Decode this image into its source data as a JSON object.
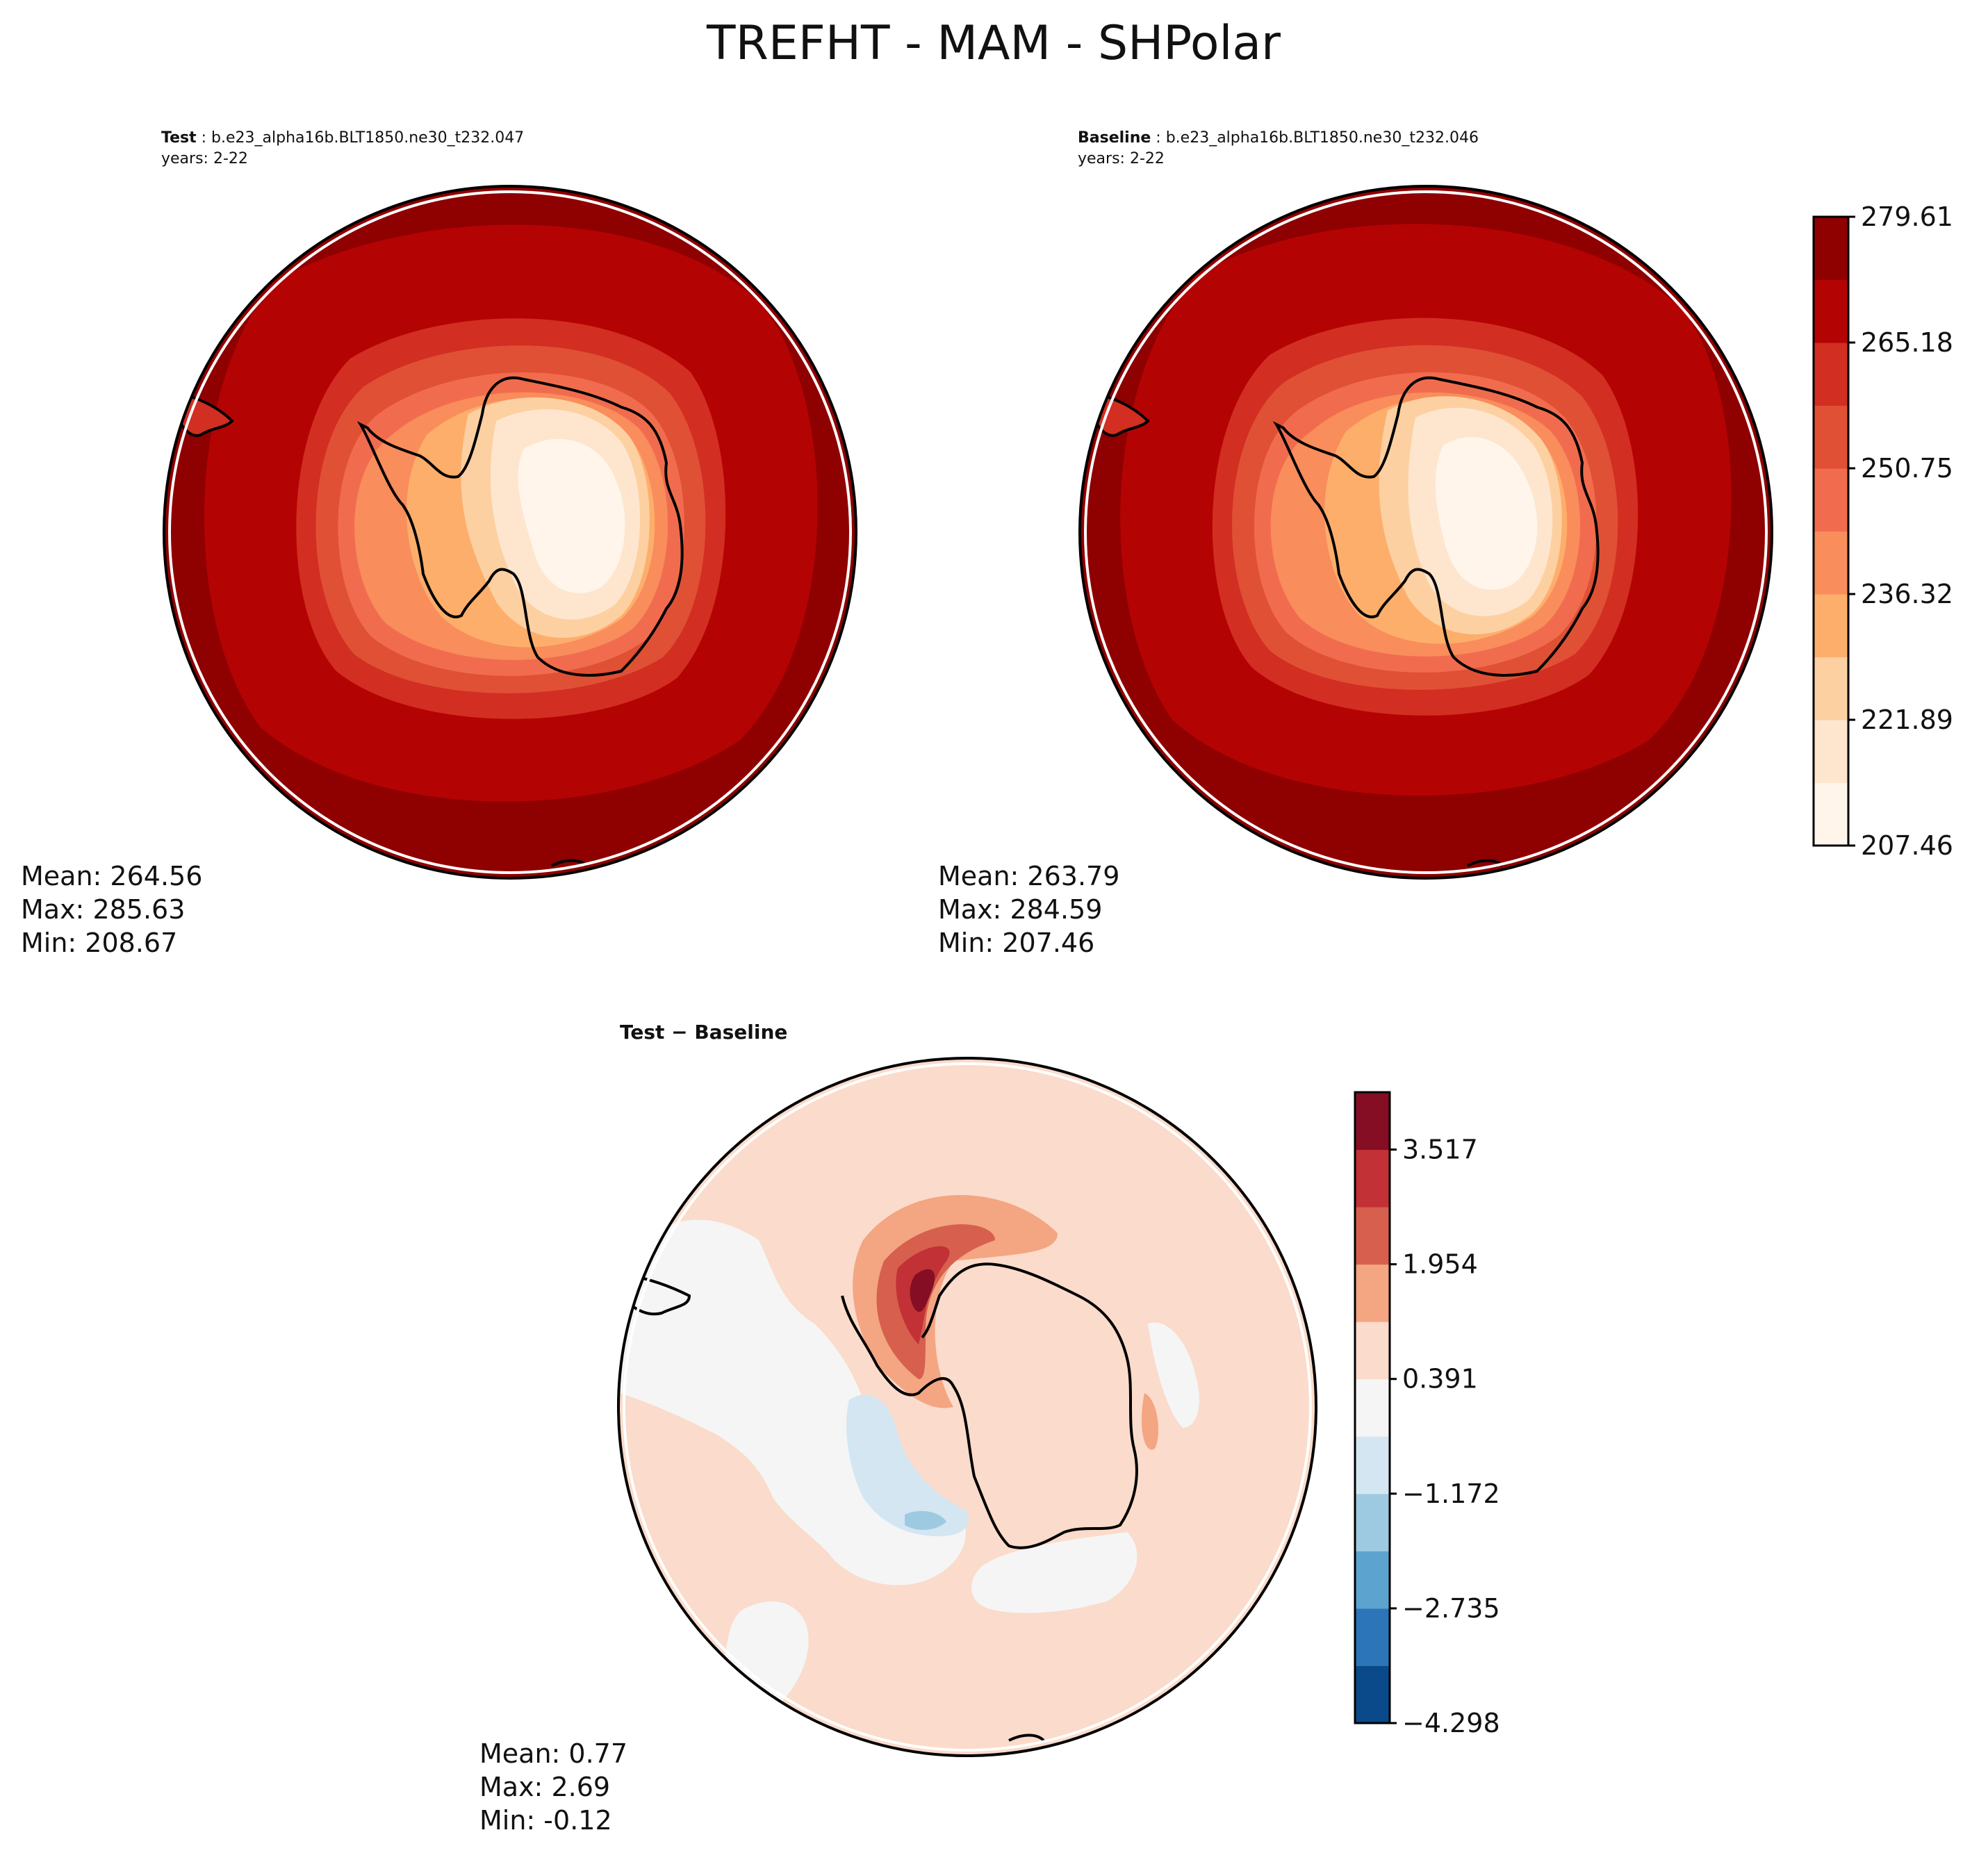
{
  "figure": {
    "title": "TREFHT - MAM - SHPolar"
  },
  "test_panel": {
    "label": "Test",
    "case": "b.e23_alpha16b.BLT1850.ne30_t232.047",
    "years": "years: 2-22",
    "stats": {
      "mean": "Mean: 264.56",
      "max": "Max: 285.63",
      "min": "Min: 208.67"
    }
  },
  "baseline_panel": {
    "label": "Baseline",
    "case": "b.e23_alpha16b.BLT1850.ne30_t232.046",
    "years": "years: 2-22",
    "stats": {
      "mean": "Mean: 263.79",
      "max": "Max: 284.59",
      "min": "Min: 207.46"
    }
  },
  "diff_panel": {
    "title": "Test − Baseline",
    "stats": {
      "mean": "Mean:  0.77",
      "max": "Max:  2.69",
      "min": "Min: -0.12"
    }
  },
  "colorbar_main": {
    "ticks": [
      "207.46",
      "221.89",
      "236.32",
      "250.75",
      "265.18",
      "279.61"
    ],
    "colors": [
      "#fff5eb",
      "#fee6ce",
      "#fdd0a2",
      "#fdae6b",
      "#f98d5c",
      "#f16c4e",
      "#e05035",
      "#d22e22",
      "#b40303",
      "#8f0000"
    ]
  },
  "colorbar_diff": {
    "ticks": [
      "−4.298",
      "−2.735",
      "−1.172",
      "0.391",
      "1.954",
      "3.517"
    ],
    "colors": [
      "#0b4a8a",
      "#2c75b8",
      "#5da3cf",
      "#9ecae1",
      "#d3e6f2",
      "#f5f5f5",
      "#fbdbcb",
      "#f4a582",
      "#d6604d",
      "#c23136",
      "#850e24"
    ]
  },
  "chart_data": [
    {
      "type": "heatmap",
      "title": "Test : b.e23_alpha16b.BLT1850.ne30_t232.047",
      "variable": "TREFHT",
      "season": "MAM",
      "region": "SHPolar",
      "levels": [
        207.46,
        221.89,
        236.32,
        250.75,
        265.18,
        279.61
      ],
      "mean": 264.56,
      "max": 285.63,
      "min": 208.67
    },
    {
      "type": "heatmap",
      "title": "Baseline : b.e23_alpha16b.BLT1850.ne30_t232.046",
      "variable": "TREFHT",
      "season": "MAM",
      "region": "SHPolar",
      "levels": [
        207.46,
        221.89,
        236.32,
        250.75,
        265.18,
        279.61
      ],
      "mean": 263.79,
      "max": 284.59,
      "min": 207.46
    },
    {
      "type": "heatmap",
      "title": "Test − Baseline",
      "levels": [
        -4.298,
        -2.735,
        -1.172,
        0.391,
        1.954,
        3.517
      ],
      "mean": 0.77,
      "max": 2.69,
      "min": -0.12
    }
  ]
}
